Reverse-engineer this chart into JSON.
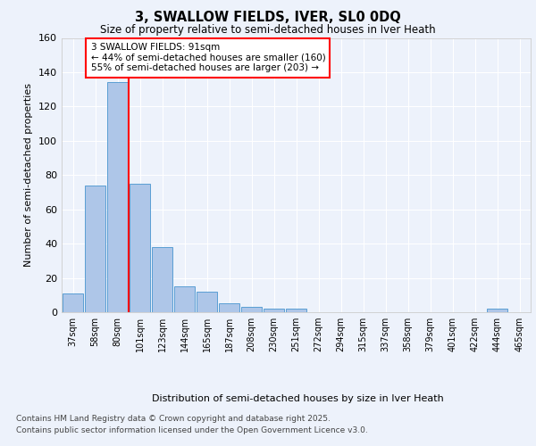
{
  "title1": "3, SWALLOW FIELDS, IVER, SL0 0DQ",
  "title2": "Size of property relative to semi-detached houses in Iver Heath",
  "xlabel": "Distribution of semi-detached houses by size in Iver Heath",
  "ylabel": "Number of semi-detached properties",
  "categories": [
    "37sqm",
    "58sqm",
    "80sqm",
    "101sqm",
    "123sqm",
    "144sqm",
    "165sqm",
    "187sqm",
    "208sqm",
    "230sqm",
    "251sqm",
    "272sqm",
    "294sqm",
    "315sqm",
    "337sqm",
    "358sqm",
    "379sqm",
    "401sqm",
    "422sqm",
    "444sqm",
    "465sqm"
  ],
  "values": [
    11,
    74,
    134,
    75,
    38,
    15,
    12,
    5,
    3,
    2,
    2,
    0,
    0,
    0,
    0,
    0,
    0,
    0,
    0,
    2,
    0
  ],
  "bar_color": "#aec6e8",
  "bar_edge_color": "#5a9fd4",
  "red_line_x": 2.5,
  "annotation_label": "3 SWALLOW FIELDS: 91sqm",
  "annotation_line1": "← 44% of semi-detached houses are smaller (160)",
  "annotation_line2": "55% of semi-detached houses are larger (203) →",
  "ylim": [
    0,
    160
  ],
  "yticks": [
    0,
    20,
    40,
    60,
    80,
    100,
    120,
    140,
    160
  ],
  "footer1": "Contains HM Land Registry data © Crown copyright and database right 2025.",
  "footer2": "Contains public sector information licensed under the Open Government Licence v3.0.",
  "bg_color": "#edf2fb",
  "plot_bg_color": "#edf2fb"
}
